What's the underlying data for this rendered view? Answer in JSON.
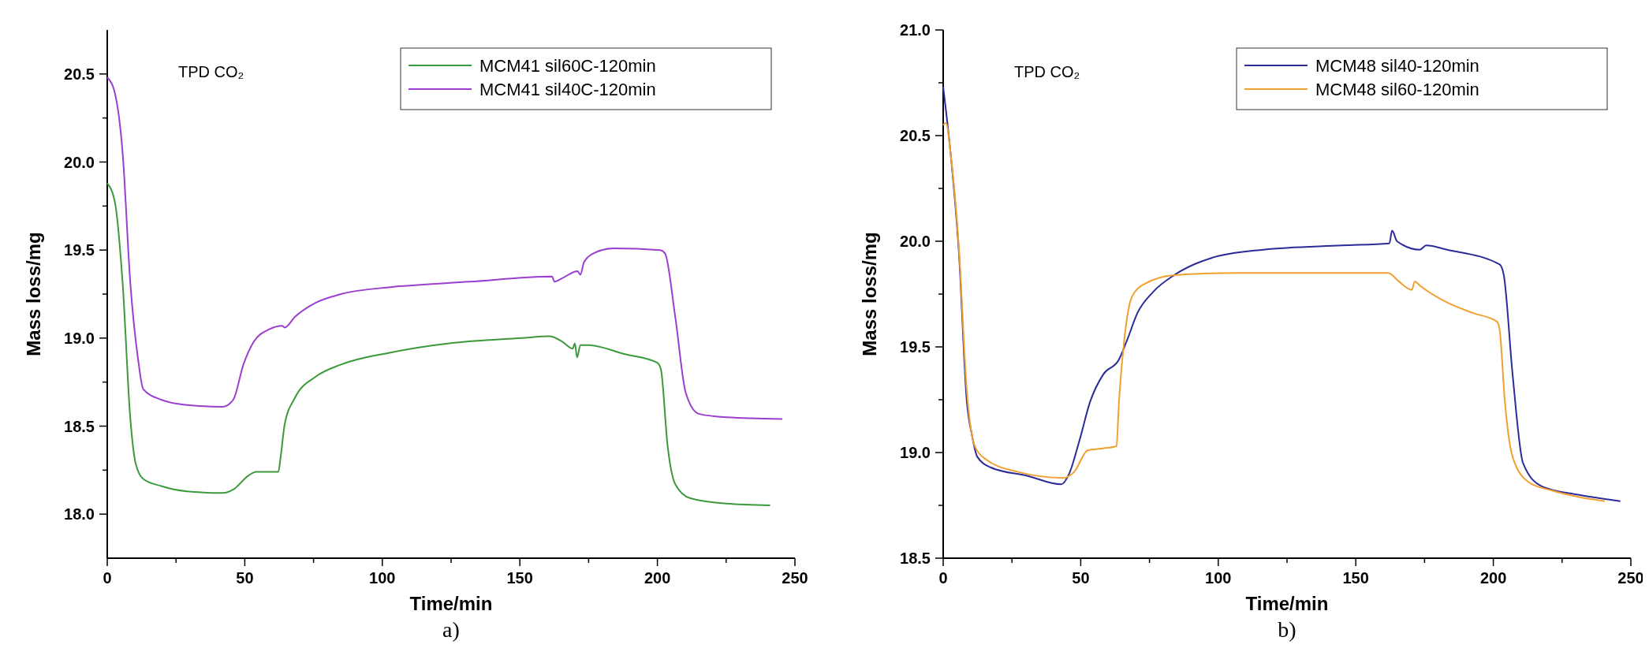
{
  "chart_data": [
    {
      "type": "line",
      "xlabel": "Time/min",
      "ylabel": "Mass loss/mg",
      "xlim": [
        0,
        250
      ],
      "ylim": [
        17.75,
        20.75
      ],
      "xticks": [
        0,
        {
          "value": 25,
          "label": null
        },
        50,
        {
          "value": 75,
          "label": null
        },
        100,
        {
          "value": 125,
          "label": null
        },
        150,
        {
          "value": 175,
          "label": null
        },
        200,
        {
          "value": 225,
          "label": null
        },
        250
      ],
      "yticks": [
        {
          "value": 18,
          "label": "18.0"
        },
        {
          "value": 18.25,
          "label": null
        },
        18.5,
        {
          "value": 18.75,
          "label": null
        },
        {
          "value": 19,
          "label": "19.0"
        },
        {
          "value": 19.25,
          "label": null
        },
        19.5,
        {
          "value": 19.75,
          "label": null
        },
        {
          "value": 20,
          "label": "20.0"
        },
        {
          "value": 20.25,
          "label": null
        },
        20.5
      ],
      "legend": "top right",
      "grid": false,
      "annotations": [
        "TPD CO₂",
        "a)"
      ],
      "series": [
        {
          "name": "MCM41 sil60C-120min",
          "color": "#3c9a3c",
          "x": [
            0,
            2.8,
            5.6,
            8.4,
            10.3,
            13.1,
            19.6,
            29,
            42,
            45.8,
            51.4,
            54.2,
            62.2,
            63,
            64.5,
            68.2,
            75.7,
            85,
            103.7,
            124.3,
            150.5,
            160.7,
            165.4,
            169.2,
            170,
            170.8,
            172,
            174.8,
            187.9,
            200,
            201.3,
            203.7,
            206.5,
            212,
            225.2,
            241
          ],
          "values": [
            19.88,
            19.77,
            19.31,
            18.54,
            18.29,
            18.2,
            18.16,
            18.13,
            18.12,
            18.14,
            18.22,
            18.24,
            18.24,
            18.32,
            18.51,
            18.66,
            18.78,
            18.85,
            18.92,
            18.97,
            19,
            19.01,
            18.98,
            18.94,
            18.97,
            18.89,
            18.96,
            18.96,
            18.91,
            18.86,
            18.82,
            18.39,
            18.17,
            18.09,
            18.06,
            18.05
          ]
        },
        {
          "name": "MCM41 sil40C-120min",
          "color": "#9b3fd1",
          "x": [
            0,
            2.8,
            5.6,
            8.4,
            11.2,
            13.1,
            19.6,
            29,
            42,
            45.8,
            49.5,
            53.3,
            58.9,
            63.6,
            64.5,
            68.2,
            75.7,
            85,
            103.7,
            131.8,
            161.7,
            162.6,
            165.4,
            171,
            172,
            173.3,
            176.6,
            184,
            201,
            202.8,
            206.5,
            210.3,
            215,
            225.2,
            245.4
          ],
          "values": [
            20.48,
            20.39,
            20.05,
            19.31,
            18.88,
            18.71,
            18.65,
            18.62,
            18.61,
            18.65,
            18.85,
            18.98,
            19.05,
            19.07,
            19.06,
            19.12,
            19.2,
            19.25,
            19.29,
            19.32,
            19.35,
            19.32,
            19.34,
            19.38,
            19.36,
            19.43,
            19.48,
            19.51,
            19.5,
            19.48,
            19.12,
            18.69,
            18.57,
            18.55,
            18.54
          ]
        }
      ]
    },
    {
      "type": "line",
      "xlabel": "Time/min",
      "ylabel": "Mass loss/mg",
      "xlim": [
        0,
        250
      ],
      "ylim": [
        18.5,
        21
      ],
      "xticks": [
        0,
        {
          "value": 25,
          "label": null
        },
        50,
        {
          "value": 75,
          "label": null
        },
        100,
        {
          "value": 125,
          "label": null
        },
        150,
        {
          "value": 175,
          "label": null
        },
        200,
        {
          "value": 225,
          "label": null
        },
        250
      ],
      "yticks": [
        18.5,
        {
          "value": 18.75,
          "label": null
        },
        {
          "value": 19,
          "label": "19.0"
        },
        {
          "value": 19.25,
          "label": null
        },
        19.5,
        {
          "value": 19.75,
          "label": null
        },
        {
          "value": 20,
          "label": "20.0"
        },
        {
          "value": 20.25,
          "label": null
        },
        20.5,
        {
          "value": 20.75,
          "label": null
        },
        {
          "value": 21,
          "label": "21.0"
        }
      ],
      "legend": "top right",
      "grid": false,
      "annotations": [
        "TPD CO₂",
        "b)"
      ],
      "series": [
        {
          "name": "MCM48 sil40-120min",
          "color": "#2b2b9a",
          "x": [
            0,
            1,
            2.9,
            5.7,
            8.6,
            10.5,
            12.4,
            17.2,
            30.5,
            42.9,
            45.8,
            49.6,
            53.4,
            58.2,
            63.9,
            66.8,
            70.6,
            76.3,
            84,
            97.3,
            116.4,
            145,
            162.2,
            163.2,
            165,
            173.3,
            175.6,
            183.2,
            202.3,
            203.8,
            207,
            210.8,
            217.6,
            230.9,
            246.2
          ],
          "values": [
            20.73,
            20.62,
            20.39,
            19.95,
            19.24,
            19.08,
            18.98,
            18.93,
            18.89,
            18.85,
            18.9,
            19.06,
            19.24,
            19.37,
            19.44,
            19.53,
            19.66,
            19.76,
            19.84,
            19.92,
            19.96,
            19.98,
            19.99,
            20.05,
            20,
            19.96,
            19.98,
            19.96,
            19.89,
            19.84,
            19.37,
            18.95,
            18.84,
            18.8,
            18.77
          ]
        },
        {
          "name": "MCM48 sil60-120min",
          "color": "#f0a030",
          "x": [
            0,
            1,
            2.9,
            5.7,
            8.6,
            11.5,
            15.3,
            26.7,
            43.9,
            47.7,
            52.5,
            58.2,
            63,
            63.9,
            65.8,
            68.7,
            73.5,
            84,
            106.9,
            161.8,
            165.6,
            170.4,
            171.4,
            173.3,
            183.2,
            192.7,
            201.3,
            202.3,
            204.2,
            207,
            212.8,
            221.4,
            230.9,
            240.5
          ],
          "values": [
            20.55,
            20.56,
            20.39,
            19.97,
            19.29,
            19.03,
            18.97,
            18.91,
            18.88,
            18.91,
            19.01,
            19.02,
            19.03,
            19.24,
            19.53,
            19.74,
            19.8,
            19.84,
            19.85,
            19.85,
            19.81,
            19.77,
            19.81,
            19.79,
            19.71,
            19.66,
            19.62,
            19.58,
            19.24,
            18.98,
            18.86,
            18.82,
            18.79,
            18.77
          ]
        }
      ]
    }
  ]
}
